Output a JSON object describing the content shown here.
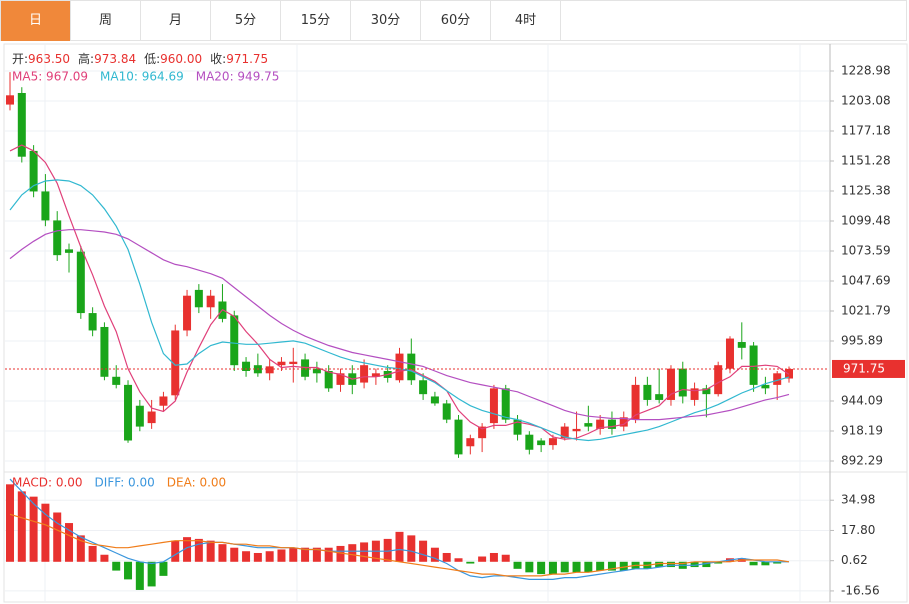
{
  "tabs": [
    "日",
    "周",
    "月",
    "5分",
    "15分",
    "30分",
    "60分",
    "4时"
  ],
  "active_tab": 0,
  "chart_data": [
    {
      "type": "candlestick",
      "info": [
        {
          "label": "开:",
          "value": "963.50"
        },
        {
          "label": "高:",
          "value": "973.84"
        },
        {
          "label": "低:",
          "value": "960.00"
        },
        {
          "label": "收:",
          "value": "971.75"
        }
      ],
      "up_color": "#e8312f",
      "down_color": "#1aa51a",
      "ohlc": [
        [
          1200,
          1228,
          1195,
          1208
        ],
        [
          1210,
          1215,
          1150,
          1155
        ],
        [
          1160,
          1165,
          1120,
          1125
        ],
        [
          1125,
          1140,
          1095,
          1100
        ],
        [
          1100,
          1108,
          1065,
          1070
        ],
        [
          1075,
          1080,
          1055,
          1072
        ],
        [
          1073,
          1078,
          1015,
          1020
        ],
        [
          1020,
          1025,
          1000,
          1005
        ],
        [
          1008,
          1012,
          962,
          965
        ],
        [
          965,
          975,
          955,
          958
        ],
        [
          958,
          962,
          908,
          910
        ],
        [
          940,
          945,
          918,
          922
        ],
        [
          925,
          945,
          920,
          935
        ],
        [
          940,
          952,
          935,
          948
        ],
        [
          949,
          1010,
          945,
          1005
        ],
        [
          1005,
          1040,
          1000,
          1035
        ],
        [
          1040,
          1045,
          1020,
          1025
        ],
        [
          1025,
          1040,
          1015,
          1035
        ],
        [
          1030,
          1045,
          1012,
          1015
        ],
        [
          1018,
          1022,
          970,
          975
        ],
        [
          978,
          982,
          965,
          970
        ],
        [
          975,
          985,
          965,
          968
        ],
        [
          968,
          980,
          962,
          974
        ],
        [
          975,
          982,
          970,
          978
        ],
        [
          976,
          990,
          960,
          978
        ],
        [
          980,
          985,
          962,
          965
        ],
        [
          972,
          978,
          960,
          968
        ],
        [
          970,
          975,
          952,
          955
        ],
        [
          958,
          972,
          952,
          968
        ],
        [
          968,
          975,
          950,
          958
        ],
        [
          960,
          980,
          955,
          975
        ],
        [
          965,
          972,
          958,
          968
        ],
        [
          970,
          975,
          960,
          964
        ],
        [
          962,
          990,
          960,
          985
        ],
        [
          985,
          998,
          958,
          962
        ],
        [
          962,
          968,
          945,
          950
        ],
        [
          948,
          952,
          940,
          942
        ],
        [
          942,
          945,
          925,
          928
        ],
        [
          928,
          932,
          895,
          898
        ],
        [
          905,
          915,
          898,
          912
        ],
        [
          912,
          925,
          900,
          922
        ],
        [
          925,
          958,
          920,
          955
        ],
        [
          955,
          958,
          925,
          928
        ],
        [
          928,
          932,
          910,
          915
        ],
        [
          915,
          918,
          898,
          902
        ],
        [
          910,
          912,
          900,
          906
        ],
        [
          906,
          915,
          902,
          912
        ],
        [
          912,
          925,
          910,
          922
        ],
        [
          918,
          935,
          910,
          920
        ],
        [
          925,
          940,
          918,
          922
        ],
        [
          920,
          932,
          915,
          928
        ],
        [
          928,
          935,
          915,
          920
        ],
        [
          922,
          935,
          918,
          930
        ],
        [
          928,
          965,
          925,
          958
        ],
        [
          958,
          965,
          940,
          945
        ],
        [
          950,
          972,
          942,
          945
        ],
        [
          945,
          975,
          940,
          972
        ],
        [
          972,
          978,
          942,
          948
        ],
        [
          945,
          960,
          940,
          955
        ],
        [
          955,
          958,
          930,
          950
        ],
        [
          950,
          978,
          948,
          975
        ],
        [
          972,
          1000,
          968,
          998
        ],
        [
          995,
          1012,
          980,
          990
        ],
        [
          992,
          995,
          952,
          958
        ],
        [
          958,
          965,
          950,
          955
        ],
        [
          958,
          970,
          945,
          968
        ],
        [
          963.5,
          973.84,
          960,
          971.75
        ]
      ],
      "series": [
        {
          "name": "MA5",
          "label": "MA5: 967.09",
          "color": "#e0407a",
          "values": [
            1160,
            1165,
            1160,
            1150,
            1132,
            1104,
            1077,
            1053,
            1026,
            1004,
            972,
            952,
            938,
            935,
            944,
            969,
            990,
            1010,
            1023,
            1017,
            1004,
            993,
            980,
            973,
            974,
            973,
            973,
            969,
            967,
            963,
            965,
            965,
            967,
            970,
            971,
            966,
            961,
            953,
            936,
            926,
            920,
            923,
            923,
            926,
            924,
            921,
            913,
            911,
            912,
            916,
            921,
            922,
            924,
            932,
            936,
            940,
            950,
            954,
            953,
            954,
            960,
            965,
            974,
            974,
            975,
            974,
            967.09
          ]
        },
        {
          "name": "MA10",
          "label": "MA10: 964.69",
          "color": "#31b8d0",
          "values": [
            1109,
            1122,
            1130,
            1134,
            1135,
            1134,
            1130,
            1122,
            1110,
            1095,
            1075,
            1045,
            1012,
            985,
            975,
            976,
            985,
            992,
            995,
            994,
            993,
            993,
            994,
            995,
            996,
            994,
            990,
            986,
            982,
            979,
            977,
            975,
            973,
            972,
            970,
            965,
            960,
            953,
            946,
            940,
            936,
            933,
            930,
            928,
            925,
            921,
            917,
            913,
            911,
            910,
            911,
            913,
            915,
            917,
            919,
            922,
            926,
            930,
            934,
            937,
            941,
            946,
            951,
            955,
            959,
            962,
            964.69
          ]
        },
        {
          "name": "MA20",
          "label": "MA20: 949.75",
          "color": "#b44fc1",
          "values": [
            1067,
            1075,
            1082,
            1088,
            1091,
            1092,
            1092,
            1091,
            1090,
            1088,
            1084,
            1078,
            1072,
            1066,
            1062,
            1060,
            1057,
            1054,
            1050,
            1042,
            1034,
            1026,
            1018,
            1011,
            1005,
            1000,
            996,
            992,
            989,
            986,
            984,
            982,
            980,
            978,
            976,
            974,
            970,
            966,
            963,
            960,
            958,
            956,
            954,
            952,
            948,
            944,
            940,
            936,
            933,
            931,
            930,
            929,
            929,
            928,
            928,
            928,
            929,
            930,
            931,
            932,
            934,
            936,
            939,
            942,
            945,
            947,
            949.75
          ]
        }
      ],
      "current_price": {
        "value": 971.75,
        "label": "971.75"
      },
      "ylim": [
        884.52,
        1248.84
      ],
      "yticks": [
        1228.98,
        1203.08,
        1177.18,
        1151.28,
        1125.38,
        1099.48,
        1073.59,
        1047.69,
        1021.79,
        995.89,
        944.09,
        918.19,
        892.29
      ],
      "grid": true
    },
    {
      "type": "bar",
      "name": "MACD",
      "label": "MACD: 0.00",
      "color": "#e8312f",
      "negative_color": "#1aa51a",
      "values": [
        44,
        40,
        37,
        33,
        28,
        22,
        15,
        9,
        4,
        -5,
        -10,
        -16,
        -14,
        -8,
        12,
        14,
        13,
        12,
        10,
        8,
        6,
        5,
        6,
        7,
        8,
        8,
        8,
        8,
        9,
        10,
        11,
        12,
        13,
        17,
        15,
        12,
        8,
        5,
        2,
        -1,
        3,
        5,
        4,
        -4,
        -6,
        -7,
        -7,
        -6,
        -6,
        -6,
        -5,
        -5,
        -5,
        -4,
        -4,
        -3,
        -3,
        -4,
        -3,
        -3,
        -1,
        2,
        2,
        -2,
        -2,
        -1,
        0
      ],
      "series": [
        {
          "name": "DIFF",
          "label": "DIFF: 0.00",
          "color": "#3a96dd",
          "values": [
            47,
            40,
            33,
            27,
            22,
            18,
            14,
            11,
            8,
            5,
            2,
            0,
            -1,
            0,
            4,
            8,
            10,
            11,
            11,
            10,
            9,
            8,
            8,
            8,
            8,
            7,
            7,
            6,
            6,
            6,
            6,
            6,
            6,
            7,
            6,
            4,
            2,
            -1,
            -5,
            -8,
            -9,
            -8,
            -8,
            -9,
            -10,
            -10,
            -10,
            -9,
            -9,
            -8,
            -7,
            -6,
            -5,
            -4,
            -4,
            -3,
            -2,
            -2,
            -2,
            -1,
            0,
            1,
            2,
            1,
            0,
            0,
            0
          ]
        },
        {
          "name": "DEA",
          "label": "DEA: 0.00",
          "color": "#f07d1a",
          "values": [
            27,
            25,
            23,
            21,
            18,
            15,
            12,
            10,
            9,
            8,
            8,
            9,
            10,
            11,
            12,
            12,
            12,
            11,
            11,
            10,
            10,
            9,
            9,
            8,
            8,
            7,
            7,
            6,
            5,
            4,
            3,
            2,
            1,
            0,
            -1,
            -2,
            -3,
            -4,
            -5,
            -6,
            -7,
            -7,
            -8,
            -8,
            -8,
            -8,
            -7,
            -7,
            -6,
            -6,
            -5,
            -4,
            -3,
            -2,
            -2,
            -1,
            -1,
            -1,
            0,
            0,
            0,
            0,
            1,
            1,
            1,
            1,
            0
          ]
        }
      ],
      "ylim": [
        -21.71,
        49.87
      ],
      "yticks": [
        34.98,
        {
          "value": 17.8,
          "label": "17.80"
        },
        0.62,
        -16.56
      ],
      "grid": true
    }
  ]
}
